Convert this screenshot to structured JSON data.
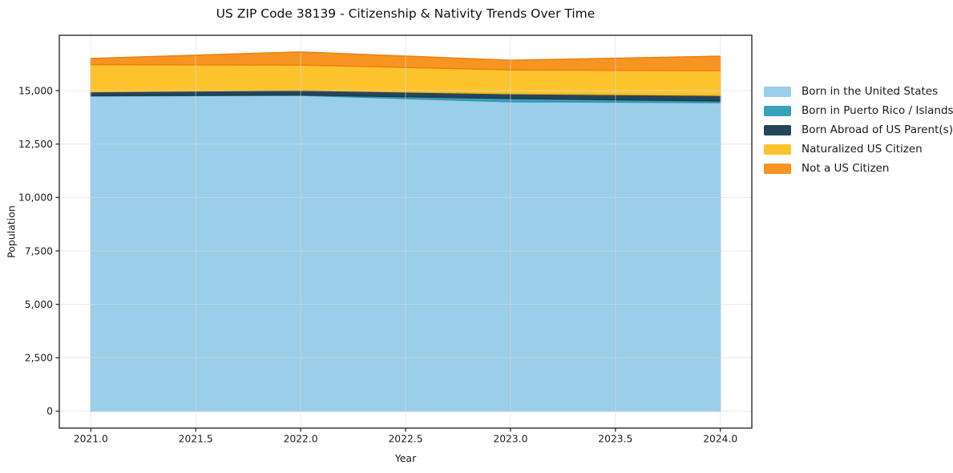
{
  "chart_data": {
    "type": "area",
    "stacked": true,
    "title": "US ZIP Code 38139 - Citizenship & Nativity Trends Over Time",
    "xlabel": "Year",
    "ylabel": "Population",
    "x": [
      2021,
      2022,
      2023,
      2024
    ],
    "series": [
      {
        "name": "Born in the United States",
        "color": "#9bcee8",
        "edge": "#86c2e0",
        "values": [
          14750,
          14780,
          14480,
          14440
        ]
      },
      {
        "name": "Born in Puerto Rico / Islands",
        "color": "#38a2bc",
        "edge": "#2e93ac",
        "values": [
          10,
          20,
          150,
          75
        ]
      },
      {
        "name": "Born Abroad of US Parent(s)",
        "color": "#24465a",
        "edge": "#1d3a4c",
        "values": [
          185,
          220,
          225,
          260
        ]
      },
      {
        "name": "Naturalized US Citizen",
        "color": "#fcc32d",
        "edge": "#f3b317",
        "values": [
          1270,
          1180,
          1120,
          1160
        ]
      },
      {
        "name": "Not a US Citizen",
        "color": "#f79522",
        "edge": "#ee7f10",
        "values": [
          290,
          610,
          450,
          675
        ]
      }
    ],
    "x_tick_values": [
      2021.0,
      2021.5,
      2022.0,
      2022.5,
      2023.0,
      2023.5,
      2024.0
    ],
    "x_tick_labels": [
      "2021.0",
      "2021.5",
      "2022.0",
      "2022.5",
      "2023.0",
      "2023.5",
      "2024.0"
    ],
    "y_tick_values": [
      0,
      2500,
      5000,
      7500,
      10000,
      12500,
      15000
    ],
    "y_tick_labels": [
      "0",
      "2,500",
      "5,000",
      "7,500",
      "10,000",
      "12,500",
      "15,000"
    ],
    "xlim": [
      2020.85,
      2024.15
    ],
    "ylim": [
      -790,
      17590
    ],
    "grid": true,
    "grid_color": "#d8d8e2",
    "spine_color": "#1c1c1c",
    "tick_label_color": "#1c1c1c",
    "legend_position": "outside-right"
  }
}
